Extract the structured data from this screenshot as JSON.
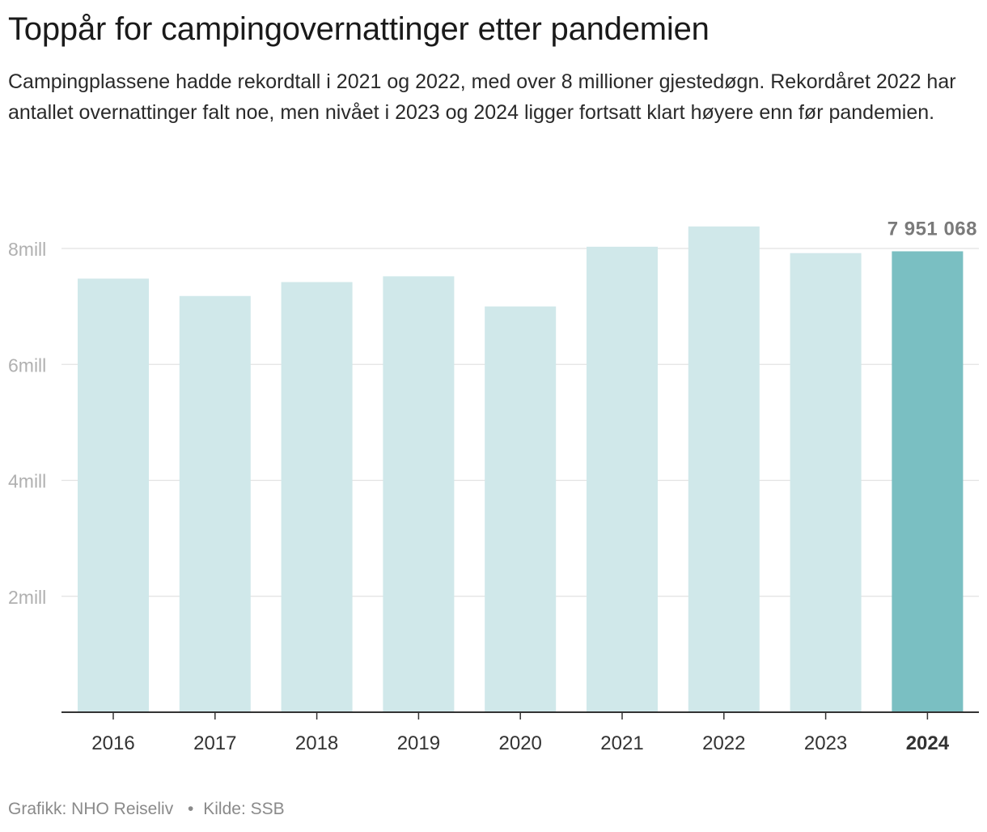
{
  "header": {
    "title": "Toppår for campingovernattinger etter pandemien",
    "subtitle": "Campingplassene hadde rekordtall i 2021 og 2022, med over 8 millioner gjestedøgn. Rekordåret 2022 har antallet overnattinger falt noe, men nivået i 2023 og 2024 ligger fortsatt klart høyere enn før pandemien."
  },
  "footer": {
    "graphic": "Grafikk: NHO Reiseliv",
    "separator": "•",
    "source": "Kilde: SSB"
  },
  "colors": {
    "bar": "#d0e8ea",
    "bar_highlight": "#7abfc2",
    "grid": "#e2e2e2",
    "axis": "#333333",
    "tick_label": "#b0b0b0",
    "category_label": "#333333",
    "value_label": "#7a7a7a"
  },
  "chart_data": {
    "type": "bar",
    "title": "Toppår for campingovernattinger etter pandemien",
    "categories": [
      "2016",
      "2017",
      "2018",
      "2019",
      "2020",
      "2021",
      "2022",
      "2023",
      "2024"
    ],
    "values": [
      7480000,
      7180000,
      7420000,
      7520000,
      7000000,
      8030000,
      8380000,
      7920000,
      7951068
    ],
    "highlight_index": 8,
    "highlight_label": "7 951 068",
    "yticks": [
      2000000,
      4000000,
      6000000,
      8000000
    ],
    "ytick_labels": [
      "2mill",
      "4mill",
      "6mill",
      "8mill"
    ],
    "ylim": [
      0,
      8000000
    ],
    "xlabel": "",
    "ylabel": "",
    "grid": true,
    "legend": "none"
  }
}
